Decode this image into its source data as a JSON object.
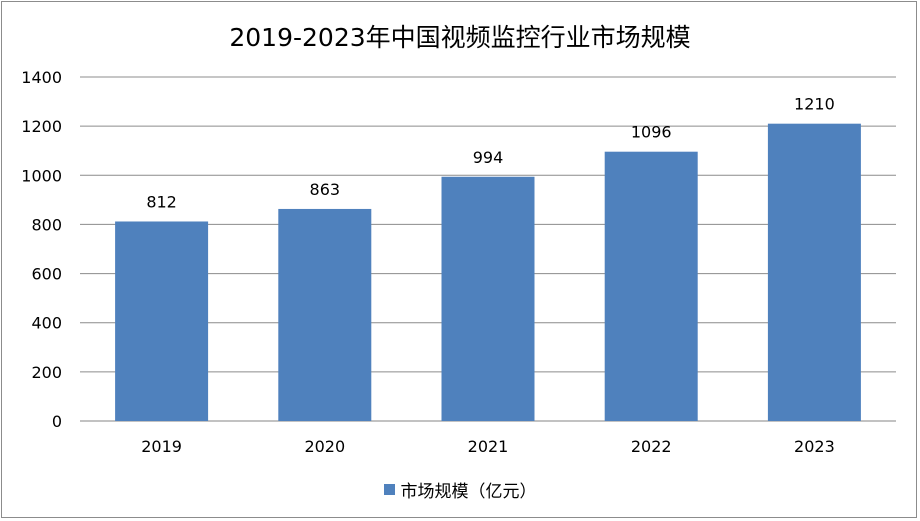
{
  "chart_data": {
    "type": "bar",
    "title": "2019-2023年中国视频监控行业市场规模",
    "categories": [
      "2019",
      "2020",
      "2021",
      "2022",
      "2023"
    ],
    "series": [
      {
        "name": "市场规模（亿元）",
        "values": [
          812,
          863,
          994,
          1096,
          1210
        ],
        "color": "#4f81bd"
      }
    ],
    "ylim": [
      0,
      1400
    ],
    "yticks": [
      0,
      200,
      400,
      600,
      800,
      1000,
      1200,
      1400
    ],
    "grid": true,
    "data_labels": true,
    "legend_position": "bottom"
  }
}
